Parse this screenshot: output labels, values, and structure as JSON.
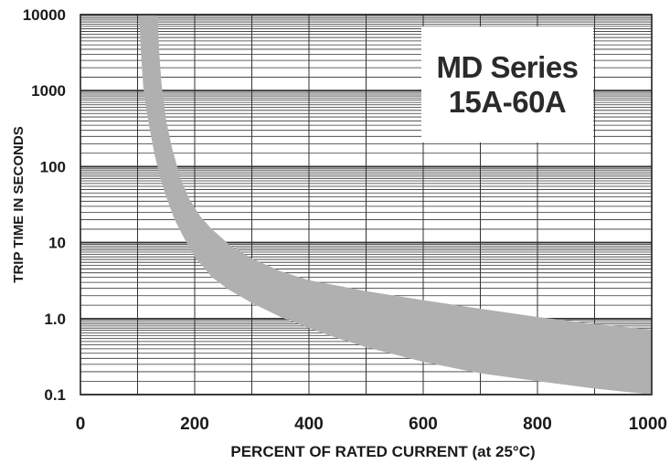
{
  "chart_data": {
    "type": "area",
    "xlabel": "PERCENT OF RATED CURRENT (at 25°C)",
    "ylabel": "TRIP TIME IN SECONDS",
    "xlim": [
      0,
      1000
    ],
    "ylim": [
      0.1,
      10000
    ],
    "y_scale": "log",
    "grid": true,
    "x_ticks": [
      0,
      200,
      400,
      600,
      800,
      1000
    ],
    "x_tick_labels": [
      "0",
      "200",
      "400",
      "600",
      "800",
      "1000"
    ],
    "y_ticks": [
      0.1,
      1,
      10,
      100,
      1000,
      10000
    ],
    "y_tick_labels": [
      "0.1",
      "1.0",
      "10",
      "100",
      "1000",
      "10000"
    ],
    "annotation": [
      "MD Series",
      "15A-60A"
    ],
    "band_color": "#b0b0b0",
    "series": [
      {
        "x": [
          103,
          106,
          110,
          115,
          120,
          130,
          140,
          150,
          165,
          180,
          200,
          230,
          260,
          300,
          350,
          400,
          450,
          500,
          600,
          700,
          800,
          900,
          1000
        ],
        "y": [
          10000,
          3000,
          1100,
          600,
          350,
          140,
          70,
          40,
          20,
          12,
          6.5,
          3.5,
          2.4,
          1.6,
          1.05,
          0.75,
          0.55,
          0.42,
          0.27,
          0.19,
          0.15,
          0.12,
          0.1
        ]
      },
      {
        "x": [
          135,
          138,
          142,
          150,
          160,
          175,
          190,
          210,
          230,
          260,
          300,
          350,
          400,
          500,
          600,
          700,
          800,
          900,
          1000
        ],
        "y": [
          10000,
          3000,
          1200,
          400,
          180,
          70,
          38,
          22,
          15,
          9.5,
          6.2,
          4.2,
          3.2,
          2.3,
          1.75,
          1.35,
          1.05,
          0.85,
          0.72
        ]
      }
    ]
  }
}
